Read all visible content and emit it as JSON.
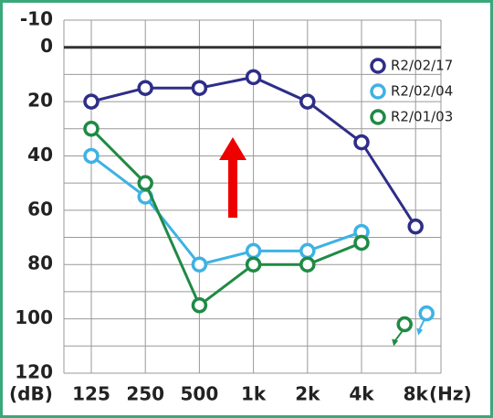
{
  "chart_data": {
    "type": "line",
    "categories": [
      "125",
      "250",
      "500",
      "1k",
      "2k",
      "4k",
      "8k"
    ],
    "x_unit": "(Hz)",
    "y_unit": "(dB)",
    "ylim": [
      -10,
      120
    ],
    "yticks": [
      -10,
      0,
      20,
      40,
      60,
      80,
      100,
      120
    ],
    "y_inverted": true,
    "grid": true,
    "series": [
      {
        "name": "R2/02/17",
        "color": "#2e2e88",
        "values": [
          20,
          15,
          15,
          11,
          20,
          35,
          66
        ],
        "no_response": [
          false,
          false,
          false,
          false,
          false,
          false,
          false
        ]
      },
      {
        "name": "R2/02/04",
        "color": "#3eb2e3",
        "values": [
          40,
          55,
          80,
          75,
          75,
          68,
          98
        ],
        "no_response": [
          false,
          false,
          false,
          false,
          false,
          false,
          true
        ]
      },
      {
        "name": "R2/01/03",
        "color": "#1f8a45",
        "values": [
          30,
          50,
          95,
          80,
          80,
          72,
          102
        ],
        "no_response": [
          false,
          false,
          false,
          false,
          false,
          false,
          true
        ]
      }
    ]
  }
}
